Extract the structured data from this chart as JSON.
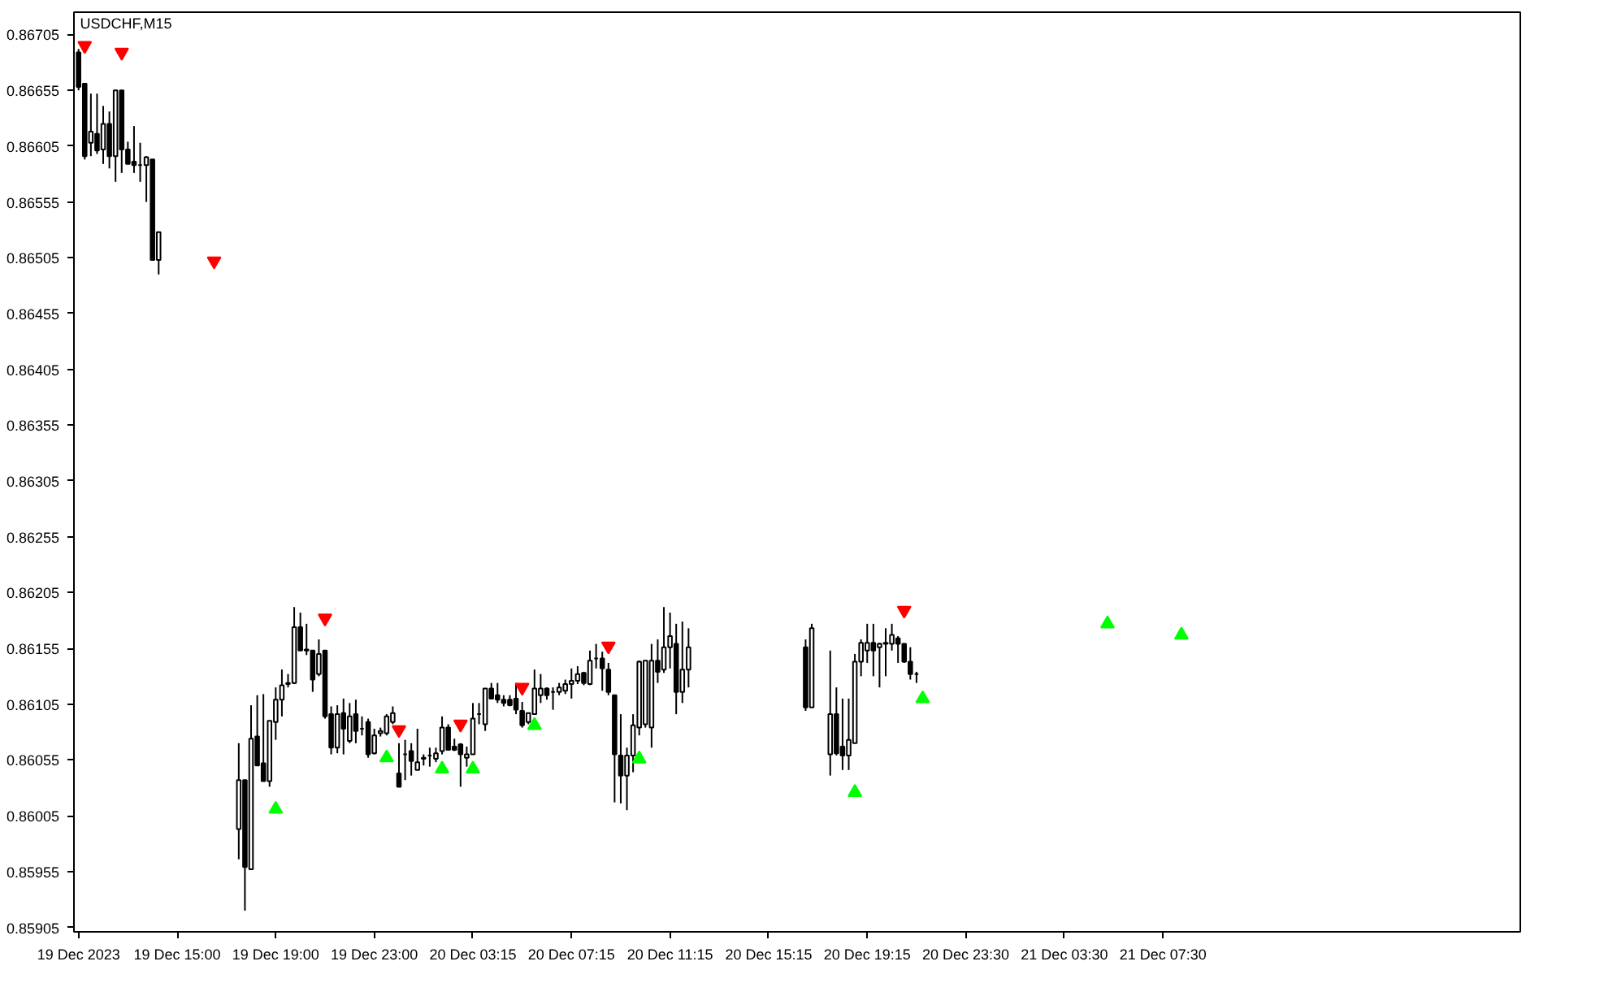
{
  "chart_data": {
    "type": "candlestick",
    "title": "USDCHF,M15",
    "categories": [
      "19 Dec 2023",
      null,
      null,
      null,
      null,
      null,
      null,
      null,
      null,
      null,
      null,
      null,
      null,
      null,
      null,
      null,
      "19 Dec 15:00",
      null,
      null,
      null,
      null,
      null,
      null,
      null,
      null,
      null,
      null,
      null,
      null,
      null,
      null,
      null,
      "19 Dec 19:00",
      null,
      null,
      null,
      null,
      null,
      null,
      null,
      null,
      null,
      null,
      null,
      null,
      null,
      null,
      null,
      "19 Dec 23:00",
      null,
      null,
      null,
      null,
      null,
      null,
      null,
      null,
      null,
      null,
      null,
      null,
      null,
      null,
      null,
      "20 Dec 03:15",
      null,
      null,
      null,
      null,
      null,
      null,
      null,
      null,
      null,
      null,
      null,
      null,
      null,
      null,
      null,
      "20 Dec 07:15",
      null,
      null,
      null,
      null,
      null,
      null,
      null,
      null,
      null,
      null,
      null,
      null,
      null,
      null,
      null,
      "20 Dec 11:15",
      null,
      null,
      null,
      null,
      null,
      null,
      null,
      null,
      null,
      null,
      null,
      null,
      null,
      null,
      null,
      "20 Dec 15:15",
      null,
      null,
      null,
      null,
      null,
      null,
      null,
      null,
      null,
      null,
      null,
      null,
      null,
      null,
      null,
      "20 Dec 19:15",
      null,
      null,
      null,
      null,
      null,
      null,
      null,
      null,
      null,
      null,
      null,
      null,
      null,
      null,
      null,
      "20 Dec 23:30",
      null,
      null,
      null,
      null,
      null,
      null,
      null,
      null,
      null,
      null,
      null,
      null,
      null,
      null,
      null,
      "21 Dec 03:30",
      null,
      null,
      null,
      null,
      null,
      null,
      null,
      null,
      null,
      null,
      null,
      null,
      null,
      null,
      null,
      "21 Dec 07:30",
      null,
      null,
      null,
      null,
      null,
      null,
      null,
      null,
      null,
      null
    ],
    "ohlc": [
      [
        0.86689,
        0.86692,
        0.86655,
        0.86658
      ],
      [
        0.86661,
        0.86661,
        0.86593,
        0.86596
      ],
      [
        0.86608,
        0.86652,
        0.86596,
        0.86618
      ],
      [
        0.86616,
        0.86652,
        0.86598,
        0.86601
      ],
      [
        0.86602,
        0.86641,
        0.86589,
        0.86625
      ],
      [
        0.86625,
        0.86636,
        0.86585,
        0.86596
      ],
      [
        0.86596,
        0.86655,
        0.86573,
        0.86655
      ],
      [
        0.86655,
        0.86655,
        0.86581,
        0.86602
      ],
      [
        0.86602,
        0.86609,
        0.86589,
        0.86589
      ],
      [
        0.86591,
        0.86623,
        0.86581,
        0.86588
      ],
      [
        0.86588,
        0.86608,
        0.86573,
        0.86588
      ],
      [
        0.86588,
        0.86596,
        0.86555,
        0.86595
      ],
      [
        0.86593,
        0.86593,
        0.86503,
        0.86503
      ],
      [
        0.86503,
        0.86528,
        0.8649,
        0.86528
      ],
      null,
      null,
      null,
      null,
      null,
      null,
      null,
      null,
      null,
      null,
      null,
      null,
      [
        0.85993,
        0.8607,
        0.85966,
        0.86037
      ],
      [
        0.86037,
        0.86037,
        0.8592,
        0.85959
      ],
      [
        0.85957,
        0.86104,
        0.85957,
        0.86074
      ],
      [
        0.86076,
        0.86113,
        0.8605,
        0.8605
      ],
      [
        0.86052,
        0.86114,
        0.86036,
        0.86036
      ],
      [
        0.86036,
        0.8609,
        0.86031,
        0.8609
      ],
      [
        0.86089,
        0.8612,
        0.86073,
        0.86109
      ],
      [
        0.86109,
        0.86136,
        0.86094,
        0.86122
      ],
      [
        0.86124,
        0.86132,
        0.8612,
        0.86123
      ],
      [
        0.86124,
        0.86192,
        0.86123,
        0.86174
      ],
      [
        0.86174,
        0.86187,
        0.86153,
        0.86153
      ],
      [
        0.86154,
        0.86177,
        0.86149,
        0.86153
      ],
      [
        0.86153,
        0.86153,
        0.86116,
        0.86127
      ],
      [
        0.86132,
        0.86163,
        0.8613,
        0.8615
      ],
      [
        0.86153,
        0.86153,
        0.86092,
        0.86094
      ],
      [
        0.86096,
        0.86103,
        0.8606,
        0.86066
      ],
      [
        0.86066,
        0.86104,
        0.86061,
        0.86096
      ],
      [
        0.86097,
        0.8611,
        0.8606,
        0.86083
      ],
      [
        0.86072,
        0.86106,
        0.8607,
        0.86094
      ],
      [
        0.86096,
        0.86109,
        0.8607,
        0.86081
      ],
      [
        0.86083,
        0.86094,
        0.86077,
        0.86083
      ],
      [
        0.86089,
        0.86092,
        0.86057,
        0.8606
      ],
      [
        0.86061,
        0.86083,
        0.8606,
        0.86077
      ],
      [
        0.86079,
        0.86084,
        0.86076,
        0.86081
      ],
      [
        0.86079,
        0.86096,
        0.86077,
        0.86094
      ],
      [
        0.86089,
        0.86103,
        0.86087,
        0.86097
      ],
      [
        0.86043,
        0.8607,
        0.86031,
        0.86031
      ],
      [
        0.8606,
        0.86073,
        0.86037,
        0.8606
      ],
      [
        0.86063,
        0.8607,
        0.86041,
        0.86054
      ],
      [
        0.86046,
        0.86083,
        0.86046,
        0.86053
      ],
      [
        0.86056,
        0.8606,
        0.8605,
        0.86057
      ],
      [
        0.86059,
        0.86066,
        0.86049,
        0.86059
      ],
      [
        0.86056,
        0.86066,
        0.86053,
        0.86061
      ],
      [
        0.86063,
        0.86094,
        0.8606,
        0.86084
      ],
      [
        0.86084,
        0.86087,
        0.86064,
        0.86064
      ],
      [
        0.86067,
        0.86074,
        0.86063,
        0.86064
      ],
      [
        0.86069,
        0.8607,
        0.86031,
        0.8606
      ],
      [
        0.86057,
        0.86067,
        0.86049,
        0.8606
      ],
      [
        0.8606,
        0.86106,
        0.8606,
        0.86092
      ],
      [
        0.86096,
        0.86106,
        0.86087,
        0.86096
      ],
      [
        0.86087,
        0.86119,
        0.86081,
        0.86119
      ],
      [
        0.86119,
        0.86124,
        0.8611,
        0.8611
      ],
      [
        0.86113,
        0.86124,
        0.86106,
        0.86109
      ],
      [
        0.86109,
        0.86113,
        0.86103,
        0.86106
      ],
      [
        0.86109,
        0.86113,
        0.86103,
        0.86104
      ],
      [
        0.8611,
        0.86124,
        0.86096,
        0.861
      ],
      [
        0.86099,
        0.86107,
        0.86084,
        0.86086
      ],
      [
        0.86089,
        0.86097,
        0.86087,
        0.86097
      ],
      [
        0.86096,
        0.86136,
        0.86096,
        0.86119
      ],
      [
        0.86113,
        0.86132,
        0.86106,
        0.86119
      ],
      [
        0.86119,
        0.8612,
        0.86109,
        0.86113
      ],
      [
        0.86116,
        0.8612,
        0.861,
        0.86116
      ],
      [
        0.86116,
        0.86124,
        0.86113,
        0.8612
      ],
      [
        0.86117,
        0.86127,
        0.86114,
        0.86123
      ],
      [
        0.86123,
        0.86137,
        0.8611,
        0.86126
      ],
      [
        0.86126,
        0.86139,
        0.86123,
        0.86132
      ],
      [
        0.86133,
        0.86134,
        0.86122,
        0.86124
      ],
      [
        0.86123,
        0.86153,
        0.86122,
        0.86144
      ],
      [
        0.86146,
        0.86159,
        0.86137,
        0.86146
      ],
      [
        0.86146,
        0.86152,
        0.86117,
        0.86137
      ],
      [
        0.86136,
        0.86142,
        0.86113,
        0.86116
      ],
      [
        0.86113,
        0.86113,
        0.86017,
        0.8606
      ],
      [
        0.86059,
        0.86096,
        0.86016,
        0.86041
      ],
      [
        0.86041,
        0.86066,
        0.8601,
        0.86059
      ],
      [
        0.86059,
        0.86096,
        0.86044,
        0.86086
      ],
      [
        0.86084,
        0.86144,
        0.86077,
        0.86143
      ],
      [
        0.86087,
        0.86144,
        0.86084,
        0.86144
      ],
      [
        0.86084,
        0.86159,
        0.86066,
        0.86144
      ],
      [
        0.86144,
        0.86163,
        0.86124,
        0.86134
      ],
      [
        0.86136,
        0.86192,
        0.86133,
        0.86156
      ],
      [
        0.86156,
        0.86187,
        0.86137,
        0.86166
      ],
      [
        0.86159,
        0.86177,
        0.86096,
        0.86116
      ],
      [
        0.86116,
        0.86179,
        0.86106,
        0.86136
      ],
      [
        0.86136,
        0.86173,
        0.8612,
        0.86156
      ],
      null,
      null,
      null,
      null,
      null,
      null,
      null,
      null,
      null,
      null,
      null,
      null,
      null,
      null,
      null,
      null,
      null,
      null,
      [
        0.86156,
        0.86163,
        0.86099,
        0.86102
      ],
      [
        0.86102,
        0.86177,
        0.86102,
        0.86173
      ],
      null,
      null,
      [
        0.8606,
        0.86153,
        0.86041,
        0.86096
      ],
      [
        0.86096,
        0.8612,
        0.86059,
        0.86061
      ],
      [
        0.86067,
        0.8611,
        0.86046,
        0.86059
      ],
      [
        0.86059,
        0.8611,
        0.86046,
        0.86073
      ],
      [
        0.8607,
        0.8615,
        0.8607,
        0.86143
      ],
      [
        0.86143,
        0.86163,
        0.8613,
        0.8616
      ],
      [
        0.86153,
        0.86177,
        0.86142,
        0.8616
      ],
      [
        0.8616,
        0.86177,
        0.8613,
        0.86153
      ],
      [
        0.86156,
        0.8616,
        0.8612,
        0.86159
      ],
      [
        0.86159,
        0.86173,
        0.8613,
        0.8616
      ],
      [
        0.86159,
        0.86177,
        0.86153,
        0.86167
      ],
      [
        0.86164,
        0.86166,
        0.86142,
        0.86159
      ],
      [
        0.86159,
        0.86159,
        0.86142,
        0.86143
      ],
      [
        0.86143,
        0.86156,
        0.86127,
        0.86132
      ],
      [
        0.86132,
        0.86134,
        0.86124,
        0.86132
      ],
      null,
      null,
      null,
      null,
      null,
      null,
      null,
      null,
      null,
      null,
      null,
      null,
      null,
      null,
      null,
      null,
      null,
      null,
      null,
      null,
      null,
      null,
      null,
      null,
      null,
      null,
      null,
      null,
      null,
      null,
      null,
      null,
      null,
      null,
      null,
      null,
      null,
      null,
      null,
      null,
      null,
      null,
      null,
      null,
      null,
      null,
      null,
      null,
      null,
      null
    ],
    "series": [
      {
        "type": "scatter",
        "color": "#ff0000",
        "values": [
          null,
          0.86695,
          null,
          null,
          null,
          null,
          null,
          0.86689,
          null,
          null,
          null,
          null,
          null,
          null,
          null,
          null,
          null,
          null,
          null,
          null,
          null,
          null,
          0.86502,
          null,
          null,
          null,
          null,
          null,
          null,
          null,
          null,
          null,
          null,
          null,
          null,
          null,
          null,
          null,
          null,
          null,
          0.86182,
          null,
          null,
          null,
          null,
          null,
          null,
          null,
          null,
          null,
          null,
          null,
          0.86082,
          null,
          null,
          null,
          null,
          null,
          null,
          null,
          null,
          null,
          0.86087,
          null,
          null,
          null,
          null,
          null,
          null,
          null,
          null,
          null,
          0.8612,
          null,
          null,
          null,
          null,
          null,
          null,
          null,
          null,
          null,
          null,
          null,
          null,
          null,
          0.86157,
          null,
          null,
          null,
          null,
          null,
          null,
          null,
          null,
          null,
          null,
          null,
          null,
          null,
          null,
          null,
          null,
          null,
          null,
          null,
          null,
          null,
          null,
          null,
          null,
          null,
          null,
          null,
          null,
          null,
          null,
          null,
          null,
          null,
          null,
          null,
          null,
          null,
          null,
          null,
          null,
          null,
          null,
          null,
          null,
          null,
          null,
          null,
          0.86189,
          null,
          null,
          null,
          null,
          null,
          null,
          null,
          null,
          null,
          null,
          null,
          null,
          null,
          null,
          null,
          null,
          null,
          null,
          null,
          null,
          null,
          null,
          null,
          null,
          null,
          null,
          null,
          null,
          null,
          null,
          null,
          null,
          null,
          null,
          null,
          null,
          null,
          null,
          null,
          null,
          null,
          null,
          null,
          null,
          null,
          null,
          null,
          null,
          null,
          null,
          null,
          null
        ]
      },
      {
        "type": "scatter",
        "marker": "triangle",
        "color": "#00ff00",
        "values": [
          null,
          null,
          null,
          null,
          null,
          null,
          null,
          null,
          null,
          null,
          null,
          null,
          null,
          null,
          null,
          null,
          null,
          null,
          null,
          null,
          null,
          null,
          null,
          null,
          null,
          null,
          null,
          null,
          null,
          null,
          null,
          null,
          0.86011,
          null,
          null,
          null,
          null,
          null,
          null,
          null,
          null,
          null,
          null,
          null,
          null,
          null,
          null,
          null,
          null,
          null,
          0.86057,
          null,
          null,
          null,
          null,
          null,
          null,
          null,
          null,
          0.86047,
          null,
          null,
          null,
          null,
          0.86047,
          null,
          null,
          null,
          null,
          null,
          null,
          null,
          null,
          null,
          0.86086,
          null,
          null,
          null,
          null,
          null,
          null,
          null,
          null,
          null,
          null,
          null,
          null,
          null,
          null,
          null,
          null,
          0.86056,
          null,
          null,
          null,
          null,
          null,
          null,
          null,
          null,
          null,
          null,
          null,
          null,
          null,
          null,
          null,
          null,
          null,
          null,
          null,
          null,
          null,
          null,
          null,
          null,
          null,
          null,
          null,
          null,
          null,
          null,
          null,
          null,
          null,
          null,
          0.86026,
          null,
          null,
          null,
          null,
          null,
          null,
          null,
          null,
          null,
          null,
          0.8611,
          null,
          null,
          null,
          null,
          null,
          null,
          null,
          null,
          null,
          null,
          null,
          null,
          null,
          null,
          null,
          null,
          null,
          null,
          null,
          null,
          null,
          null,
          null,
          null,
          null,
          null,
          null,
          null,
          null,
          0.86177,
          null,
          null,
          null,
          null,
          null,
          null,
          null,
          null,
          null,
          null,
          null,
          0.86167,
          null,
          null,
          null,
          null,
          null,
          null,
          null
        ]
      }
    ],
    "ylim": [
      0.85901,
      0.86725
    ],
    "yticks": [
      {
        "value": 0.86705,
        "label": "0.86705"
      },
      {
        "value": 0.86655,
        "label": "0.86655"
      },
      {
        "value": 0.86605,
        "label": "0.86605"
      },
      {
        "value": 0.86555,
        "label": "0.86555"
      },
      {
        "value": 0.86505,
        "label": "0.86505"
      },
      {
        "value": 0.86455,
        "label": "0.86455"
      },
      {
        "value": 0.86405,
        "label": "0.86405"
      },
      {
        "value": 0.86355,
        "label": "0.86355"
      },
      {
        "value": 0.86305,
        "label": "0.86305"
      },
      {
        "value": 0.86255,
        "label": "0.86255"
      },
      {
        "value": 0.86205,
        "label": "0.86205"
      },
      {
        "value": 0.86155,
        "label": "0.86155"
      },
      {
        "value": 0.86105,
        "label": "0.86105"
      },
      {
        "value": 0.86055,
        "label": "0.86055"
      },
      {
        "value": 0.86005,
        "label": "0.86005"
      },
      {
        "value": 0.85955,
        "label": "0.85955"
      },
      {
        "value": 0.85905,
        "label": "0.85905"
      }
    ]
  }
}
